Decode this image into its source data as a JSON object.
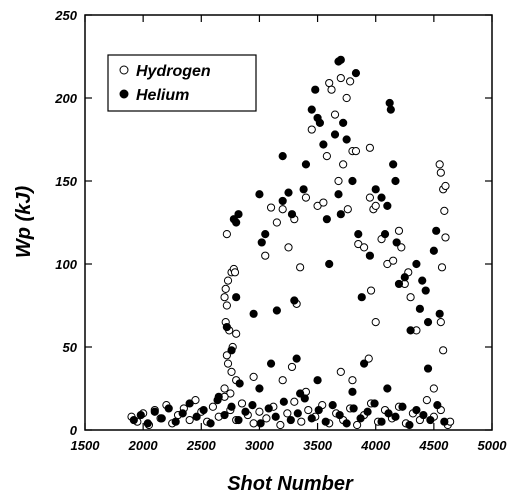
{
  "chart_data": {
    "type": "scatter",
    "xlabel": "Shot Number",
    "ylabel": "Wp (kJ)",
    "xlim": [
      1500,
      5000
    ],
    "xticks": [
      1500,
      2000,
      2500,
      3000,
      3500,
      4000,
      4500,
      5000
    ],
    "ylim": [
      0,
      250
    ],
    "yticks": [
      0,
      50,
      100,
      150,
      200,
      250
    ],
    "legend": "upper left",
    "series": [
      {
        "name": "Hydrogen",
        "color": "#000000",
        "hollow": true,
        "x": [
          2720,
          2710,
          2700,
          2720,
          2710,
          2730,
          2760,
          2780,
          2790,
          2740,
          2770,
          2800,
          2720,
          2730,
          2760,
          2800,
          2700,
          2750,
          2950,
          3050,
          3100,
          3150,
          3200,
          3250,
          3300,
          3350,
          3320,
          3280,
          3400,
          3450,
          3500,
          3550,
          3580,
          3600,
          3620,
          3650,
          3700,
          3750,
          3780,
          3720,
          3680,
          3760,
          3800,
          3830,
          3850,
          3900,
          3950,
          3950,
          3980,
          4000,
          3960,
          4000,
          3940,
          4050,
          4100,
          4150,
          4200,
          4220,
          4250,
          4280,
          4300,
          4350,
          4550,
          4560,
          4580,
          4600,
          4590,
          4600,
          4570,
          4560,
          4580,
          4500,
          3200,
          3400,
          3700,
          3800,
          1900,
          1950,
          2000,
          2050,
          2100,
          2150,
          2200,
          2250,
          2300,
          2350,
          2400,
          2450,
          2500,
          2550,
          2600,
          2650,
          2700,
          2750,
          2800,
          2850,
          2900,
          2950,
          3000,
          3060,
          3120,
          3180,
          3240,
          3300,
          3360,
          3420,
          3480,
          3540,
          3600,
          3660,
          3720,
          3780,
          3840,
          3900,
          3960,
          4020,
          4080,
          4140,
          4200,
          4260,
          4320,
          4380,
          4440,
          4500,
          4560,
          4620,
          4640
        ],
        "y": [
          118,
          85,
          80,
          75,
          65,
          90,
          95,
          97,
          95,
          60,
          50,
          58,
          45,
          40,
          35,
          30,
          25,
          22,
          32,
          105,
          134,
          125,
          133,
          110,
          127,
          98,
          76,
          38,
          140,
          181,
          135,
          137,
          165,
          209,
          205,
          190,
          212,
          200,
          210,
          160,
          150,
          133,
          168,
          168,
          112,
          110,
          170,
          140,
          133,
          135,
          84,
          65,
          43,
          115,
          100,
          102,
          120,
          110,
          88,
          95,
          80,
          60,
          160,
          155,
          145,
          147,
          132,
          116,
          98,
          65,
          48,
          25,
          30,
          23,
          35,
          30,
          8,
          5,
          10,
          3,
          12,
          7,
          15,
          4,
          9,
          13,
          6,
          18,
          11,
          5,
          14,
          8,
          20,
          12,
          6,
          16,
          9,
          4,
          11,
          7,
          14,
          3,
          10,
          17,
          5,
          12,
          8,
          15,
          4,
          10,
          6,
          13,
          3,
          9,
          16,
          5,
          12,
          7,
          14,
          4,
          10,
          6,
          18,
          8,
          12,
          3,
          5
        ]
      },
      {
        "name": "Helium",
        "color": "#000000",
        "hollow": false,
        "x": [
          2650,
          2720,
          2800,
          2780,
          2820,
          2760,
          2800,
          2830,
          2950,
          3000,
          3020,
          3050,
          3100,
          3150,
          3200,
          3200,
          3250,
          3280,
          3300,
          3320,
          3380,
          3400,
          3450,
          3480,
          3500,
          3520,
          3550,
          3580,
          3600,
          3650,
          3680,
          3700,
          3680,
          3700,
          3720,
          3750,
          3800,
          3830,
          3850,
          3880,
          3900,
          3950,
          4000,
          4050,
          4080,
          4100,
          4120,
          4130,
          4150,
          4170,
          4180,
          4200,
          4250,
          4300,
          4350,
          4380,
          4400,
          4430,
          4450,
          4450,
          4500,
          4520,
          4550,
          3000,
          3350,
          3500,
          3800,
          4100,
          1920,
          1980,
          2040,
          2100,
          2160,
          2220,
          2280,
          2340,
          2400,
          2460,
          2520,
          2580,
          2640,
          2700,
          2760,
          2820,
          2880,
          2940,
          3010,
          3080,
          3140,
          3210,
          3270,
          3330,
          3390,
          3450,
          3510,
          3570,
          3630,
          3690,
          3750,
          3810,
          3870,
          3930,
          3990,
          4050,
          4110,
          4170,
          4230,
          4290,
          4350,
          4410,
          4470,
          4530,
          4590
        ],
        "y": [
          20,
          62,
          125,
          127,
          130,
          48,
          80,
          28,
          70,
          142,
          113,
          118,
          40,
          72,
          165,
          138,
          143,
          130,
          78,
          43,
          145,
          160,
          193,
          205,
          188,
          185,
          172,
          127,
          100,
          178,
          222,
          223,
          142,
          130,
          185,
          175,
          150,
          215,
          118,
          80,
          40,
          105,
          145,
          140,
          118,
          135,
          197,
          193,
          160,
          150,
          113,
          88,
          92,
          60,
          100,
          73,
          90,
          84,
          65,
          37,
          108,
          120,
          70,
          25,
          22,
          30,
          23,
          25,
          6,
          9,
          4,
          11,
          7,
          13,
          5,
          10,
          16,
          8,
          12,
          4,
          18,
          9,
          14,
          6,
          11,
          15,
          4,
          13,
          8,
          17,
          6,
          10,
          19,
          7,
          12,
          5,
          15,
          9,
          4,
          13,
          7,
          11,
          16,
          5,
          10,
          8,
          14,
          3,
          12,
          9,
          6,
          15,
          5
        ]
      }
    ]
  }
}
